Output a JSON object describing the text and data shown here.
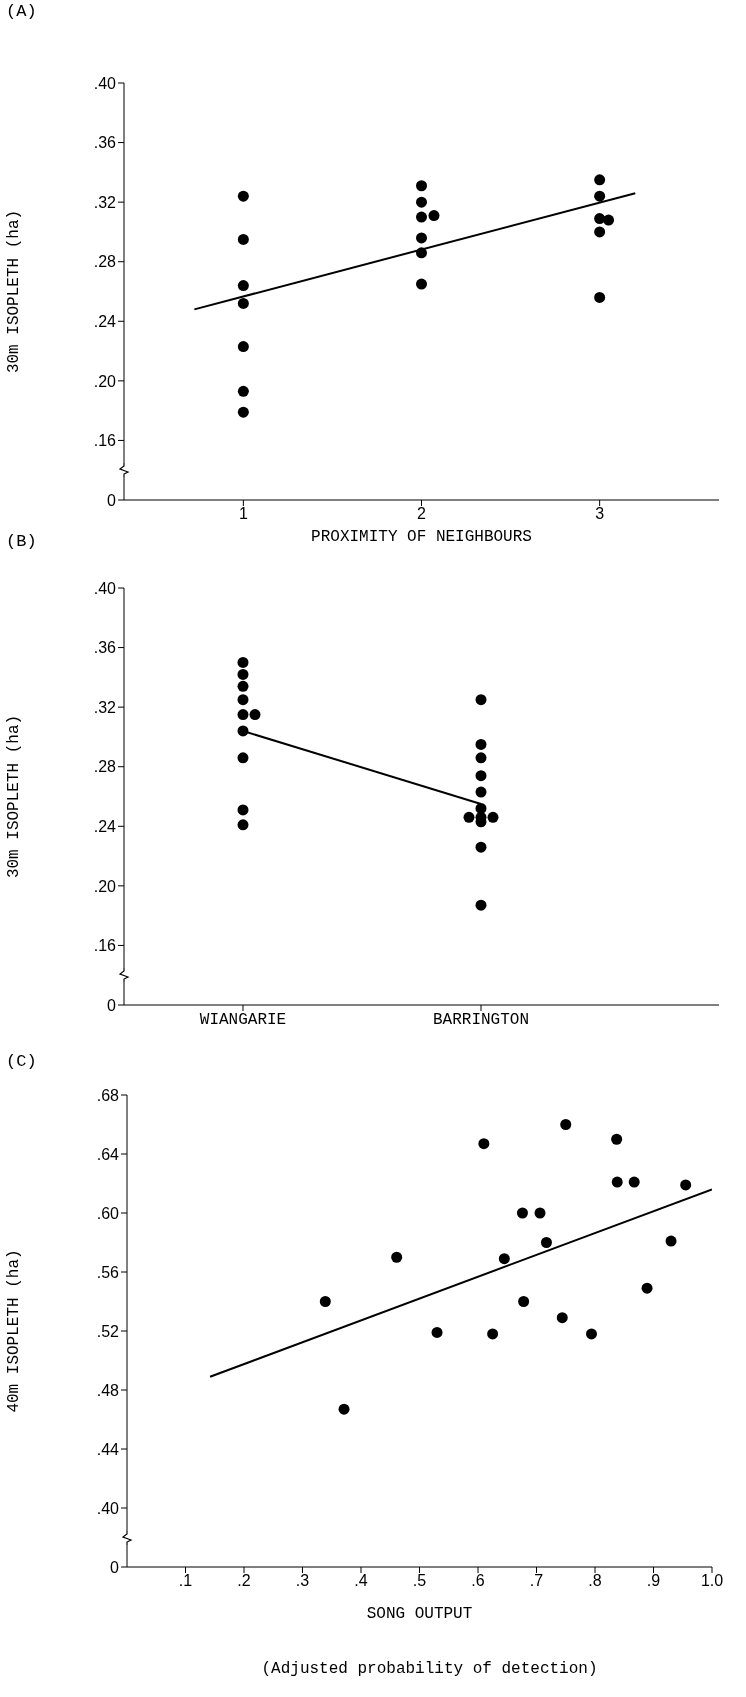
{
  "chart_data": [
    {
      "type": "scatter",
      "title": "(A)",
      "xlabel": "PROXIMITY OF NEIGHBOURS",
      "ylabel": "30m ISOPLETH (ha)",
      "xlim": [
        0.33,
        3.67
      ],
      "xticks": [
        1,
        2,
        3
      ],
      "ylim": [
        0.12,
        0.4
      ],
      "yticks": [
        {
          "value": 0.12,
          "label": "0"
        },
        {
          "value": 0.16,
          "label": ".16"
        },
        {
          "value": 0.2,
          "label": ".20"
        },
        {
          "value": 0.24,
          "label": ".24"
        },
        {
          "value": 0.28,
          "label": ".28"
        },
        {
          "value": 0.32,
          "label": ".32"
        },
        {
          "value": 0.36,
          "label": ".36"
        },
        {
          "value": 0.4,
          "label": ".40"
        }
      ],
      "series": [
        {
          "type": "scatter",
          "marker": "circle",
          "color": "#000000",
          "x": [
            1,
            1,
            1,
            1,
            1,
            1,
            1,
            2,
            2,
            2,
            2,
            2,
            2,
            2.07,
            3,
            3,
            3,
            3,
            3,
            3.05
          ],
          "values": [
            0.324,
            0.295,
            0.264,
            0.252,
            0.223,
            0.193,
            0.179,
            0.331,
            0.32,
            0.31,
            0.296,
            0.286,
            0.265,
            0.311,
            0.335,
            0.324,
            0.309,
            0.3,
            0.256,
            0.308
          ]
        },
        {
          "type": "line",
          "line_style": "solid",
          "color": "#000000",
          "x": [
            0.725,
            3.2
          ],
          "values": [
            0.248,
            0.326
          ]
        }
      ]
    },
    {
      "type": "scatter",
      "title": "(B)",
      "ylabel": "30m ISOPLETH (ha)",
      "categories": [
        "WIANGARIE",
        "BARRINGTON"
      ],
      "ylim": [
        0.12,
        0.4
      ],
      "yticks": [
        {
          "value": 0.12,
          "label": "0"
        },
        {
          "value": 0.16,
          "label": ".16"
        },
        {
          "value": 0.2,
          "label": ".20"
        },
        {
          "value": 0.24,
          "label": ".24"
        },
        {
          "value": 0.28,
          "label": ".28"
        },
        {
          "value": 0.32,
          "label": ".32"
        },
        {
          "value": 0.36,
          "label": ".36"
        },
        {
          "value": 0.4,
          "label": ".40"
        }
      ],
      "series": [
        {
          "type": "scatter",
          "marker": "circle",
          "color": "#000000",
          "x": [
            "WIANGARIE",
            "WIANGARIE",
            "WIANGARIE",
            "WIANGARIE",
            "WIANGARIE",
            "WIANGARIE",
            "WIANGARIE",
            "WIANGARIE",
            "WIANGARIE",
            "WIANGARIE",
            "BARRINGTON",
            "BARRINGTON",
            "BARRINGTON",
            "BARRINGTON",
            "BARRINGTON",
            "BARRINGTON",
            "BARRINGTON",
            "BARRINGTON",
            "BARRINGTON",
            "BARRINGTON",
            "BARRINGTON",
            "BARRINGTON"
          ],
          "values": [
            0.35,
            0.342,
            0.334,
            0.325,
            0.315,
            0.304,
            0.286,
            0.251,
            0.241,
            0.315,
            0.325,
            0.295,
            0.286,
            0.274,
            0.263,
            0.252,
            0.246,
            0.246,
            0.246,
            0.243,
            0.226,
            0.187
          ]
        },
        {
          "type": "line",
          "line_style": "solid",
          "color": "#000000",
          "x": [
            "WIANGARIE",
            "BARRINGTON"
          ],
          "values": [
            0.304,
            0.255
          ]
        }
      ]
    },
    {
      "type": "scatter",
      "title": "(C)",
      "xlabel": "SONG OUTPUT",
      "ylabel": "40m ISOPLETH (ha)",
      "annotations": [
        "(Adjusted probability of detection)"
      ],
      "xlim": [
        0,
        1.0
      ],
      "xticks": [
        {
          "value": 0.1,
          "label": ".1"
        },
        {
          "value": 0.2,
          "label": ".2"
        },
        {
          "value": 0.3,
          "label": ".3"
        },
        {
          "value": 0.4,
          "label": ".4"
        },
        {
          "value": 0.5,
          "label": ".5"
        },
        {
          "value": 0.6,
          "label": ".6"
        },
        {
          "value": 0.7,
          "label": ".7"
        },
        {
          "value": 0.8,
          "label": ".8"
        },
        {
          "value": 0.9,
          "label": ".9"
        },
        {
          "value": 1.0,
          "label": "1.0"
        }
      ],
      "ylim": [
        0.36,
        0.68
      ],
      "yticks": [
        {
          "value": 0.36,
          "label": "0"
        },
        {
          "value": 0.4,
          "label": ".40"
        },
        {
          "value": 0.44,
          "label": ".44"
        },
        {
          "value": 0.48,
          "label": ".48"
        },
        {
          "value": 0.52,
          "label": ".52"
        },
        {
          "value": 0.56,
          "label": ".56"
        },
        {
          "value": 0.6,
          "label": ".60"
        },
        {
          "value": 0.64,
          "label": ".64"
        },
        {
          "value": 0.68,
          "label": ".68"
        }
      ],
      "series": [
        {
          "type": "scatter",
          "marker": "circle",
          "color": "#000000",
          "x": [
            0.61,
            0.75,
            0.837,
            0.838,
            0.867,
            0.955,
            0.676,
            0.706,
            0.717,
            0.645,
            0.461,
            0.339,
            0.678,
            0.93,
            0.889,
            0.53,
            0.625,
            0.744,
            0.794,
            0.371
          ],
          "values": [
            0.647,
            0.66,
            0.65,
            0.621,
            0.621,
            0.619,
            0.6,
            0.6,
            0.58,
            0.569,
            0.57,
            0.54,
            0.54,
            0.581,
            0.549,
            0.519,
            0.518,
            0.529,
            0.518,
            0.467
          ]
        },
        {
          "type": "line",
          "line_style": "solid",
          "color": "#000000",
          "x": [
            0.142,
            1.0
          ],
          "values": [
            0.489,
            0.616
          ]
        }
      ]
    }
  ]
}
